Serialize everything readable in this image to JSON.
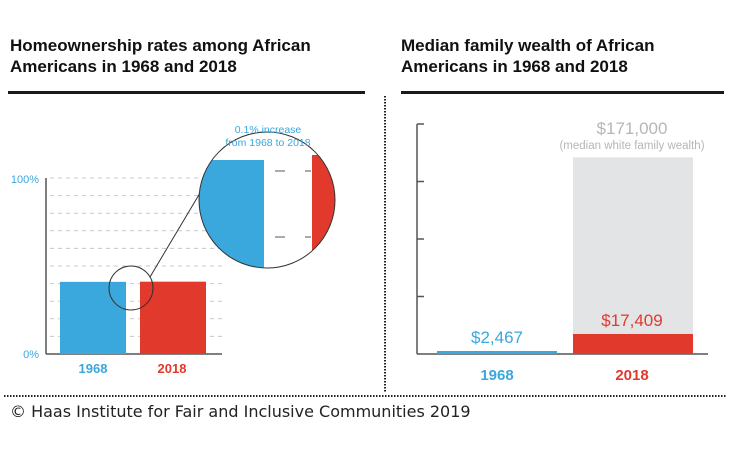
{
  "left_chart": {
    "title_line1": "Homeownership rates among African",
    "title_line2": "Americans in 1968 and 2018"
  },
  "right_chart": {
    "title_line1": "Median family wealth of African",
    "title_line2": "Americans in 1968 and 2018"
  },
  "footer": {
    "credit": "© Haas Institute for Fair and Inclusive Communities 2019"
  },
  "colors": {
    "blue": "#3aa7dd",
    "red": "#e2392d",
    "gray_bar": "#e3e4e5",
    "gray_text": "#b4b6b8",
    "axis": "#555555"
  },
  "chart_data": [
    {
      "type": "bar",
      "title": "Homeownership rates among African Americans in 1968 and 2018",
      "categories": [
        "1968",
        "2018"
      ],
      "values": [
        41.0,
        41.1
      ],
      "unit": "%",
      "ylim": [
        0,
        100
      ],
      "yticks": [
        "0%",
        "100%"
      ],
      "grid": true,
      "annotation": {
        "line1": "0.1% increase",
        "line2": "from 1968 to 2018"
      }
    },
    {
      "type": "bar",
      "title": "Median family wealth of African Americans in 1968 and 2018",
      "categories": [
        "1968",
        "2018"
      ],
      "values": [
        2467,
        17409
      ],
      "value_labels": [
        "$2,467",
        "$17,409"
      ],
      "reference": {
        "value": 171000,
        "label": "$171,000",
        "sublabel": "(median white family wealth)"
      },
      "ylim": [
        0,
        200000
      ],
      "yticks_count": 5,
      "grid": false
    }
  ]
}
